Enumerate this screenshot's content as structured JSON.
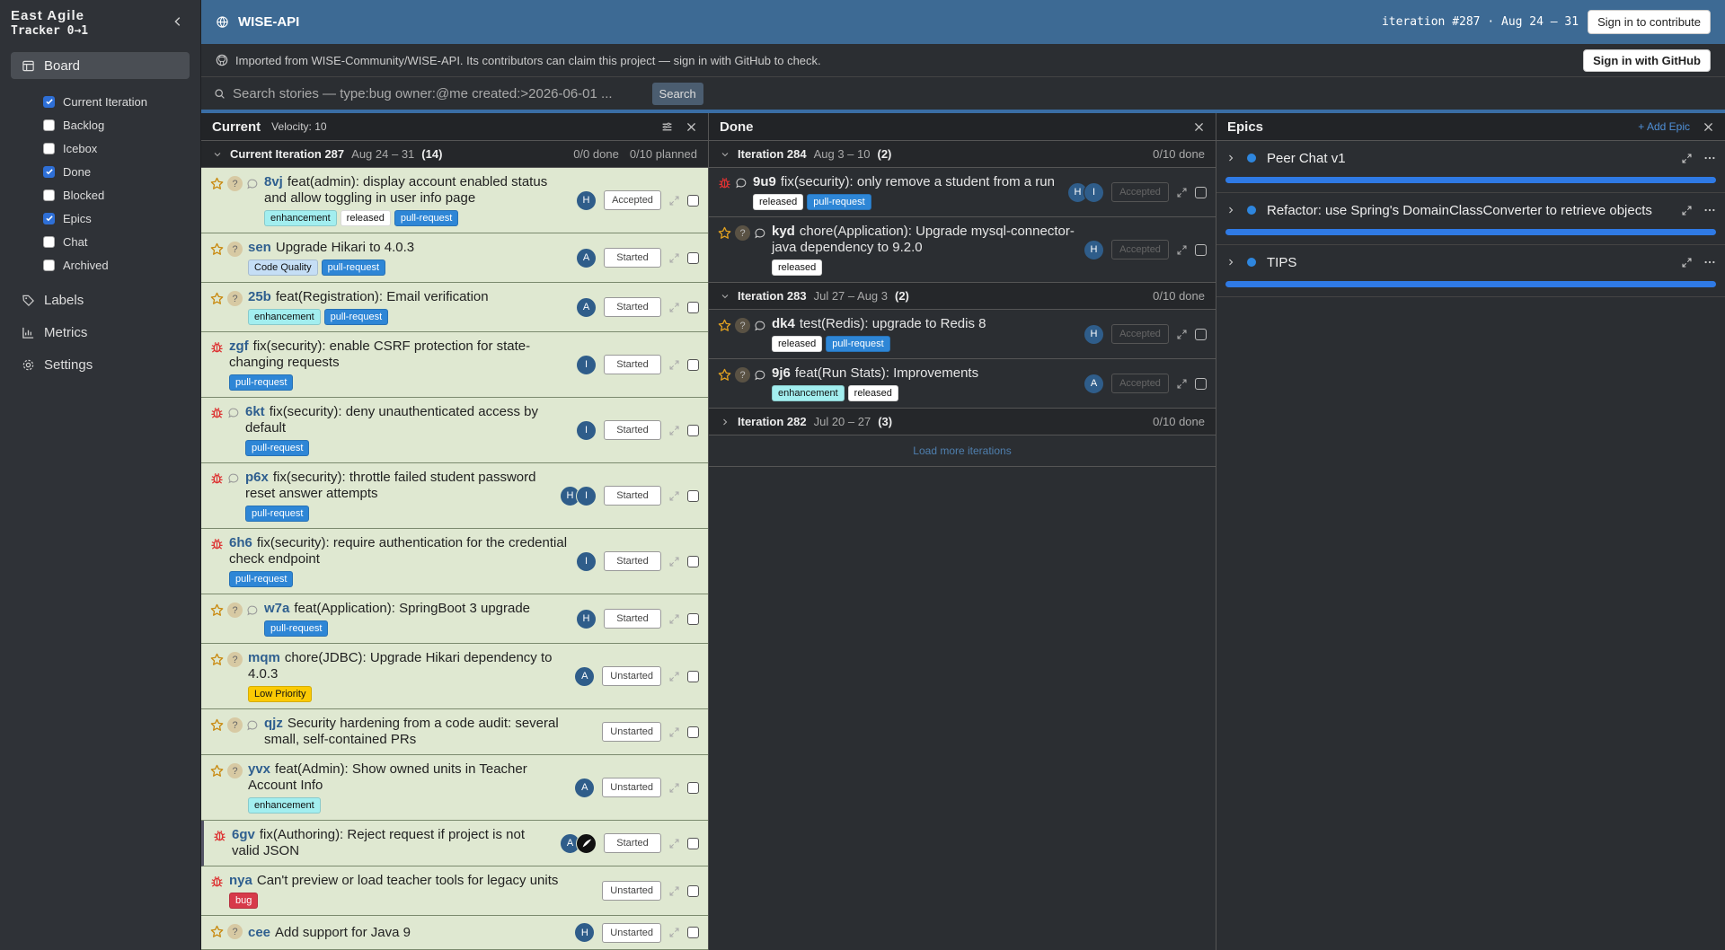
{
  "sidebar": {
    "brand": "East Agile",
    "product": "Tracker 0→1",
    "board": "Board",
    "board_items": [
      {
        "label": "Current Iteration",
        "checked": true
      },
      {
        "label": "Backlog",
        "checked": false
      },
      {
        "label": "Icebox",
        "checked": false
      },
      {
        "label": "Done",
        "checked": true
      },
      {
        "label": "Blocked",
        "checked": false
      },
      {
        "label": "Epics",
        "checked": true
      },
      {
        "label": "Chat",
        "checked": false
      },
      {
        "label": "Archived",
        "checked": false
      }
    ],
    "nav": [
      "Labels",
      "Metrics",
      "Settings"
    ]
  },
  "header": {
    "project": "WISE-API",
    "iteration": "iteration #287 · Aug 24 – 31",
    "sign_in": "Sign in to contribute"
  },
  "banner": {
    "text": "Imported from WISE-Community/WISE-API. Its contributors can claim this project — sign in with GitHub to check.",
    "button": "Sign in with GitHub"
  },
  "search": {
    "placeholder": "Search stories — type:bug owner:@me created:>2026-06-01 ...",
    "button": "Search"
  },
  "labels": [
    {
      "name": "enhancement",
      "bg": "#a2eeef",
      "fg": "#111"
    },
    {
      "name": "released",
      "bg": "#ffffff",
      "fg": "#111"
    },
    {
      "name": "pull-request",
      "bg": "#2e86d6",
      "fg": "#fff"
    },
    {
      "name": "Code Quality",
      "bg": "#c5def5",
      "fg": "#111"
    },
    {
      "name": "Low Priority",
      "bg": "#fbca04",
      "fg": "#111"
    },
    {
      "name": "bug",
      "bg": "#d73a4a",
      "fg": "#fff"
    }
  ],
  "current": {
    "title": "Current",
    "velocity": "Velocity: 10",
    "group": {
      "name": "Current Iteration 287",
      "dates": "Aug 24 – 31",
      "count": "(14)",
      "done": "0/0 done",
      "planned": "0/10 planned",
      "stories": [
        {
          "id": "8vj",
          "title": "feat(admin): display account enabled status and allow toggling in user info page",
          "kind": "feature",
          "estimate": "?",
          "comment": true,
          "owners": [
            "H"
          ],
          "state": "Accepted",
          "labels": [
            0,
            1,
            2
          ]
        },
        {
          "id": "sen",
          "title": "Upgrade Hikari to 4.0.3",
          "kind": "feature",
          "estimate": "?",
          "comment": false,
          "owners": [
            "A"
          ],
          "state": "Started",
          "labels": [
            3,
            2
          ]
        },
        {
          "id": "25b",
          "title": "feat(Registration): Email verification",
          "kind": "feature",
          "estimate": "?",
          "comment": false,
          "owners": [
            "A"
          ],
          "state": "Started",
          "labels": [
            0,
            2
          ]
        },
        {
          "id": "zgf",
          "title": "fix(security): enable CSRF protection for state-changing requests",
          "kind": "bug",
          "comment": false,
          "owners": [
            "I"
          ],
          "state": "Started",
          "labels": [
            2
          ]
        },
        {
          "id": "6kt",
          "title": "fix(security): deny unauthenticated access by default",
          "kind": "bug",
          "comment": true,
          "owners": [
            "I"
          ],
          "state": "Started",
          "labels": [
            2
          ]
        },
        {
          "id": "p6x",
          "title": "fix(security): throttle failed student password reset answer attempts",
          "kind": "bug",
          "comment": true,
          "owners": [
            "H",
            "I"
          ],
          "state": "Started",
          "labels": [
            2
          ]
        },
        {
          "id": "6h6",
          "title": "fix(security): require authentication for the credential check endpoint",
          "kind": "bug",
          "comment": false,
          "owners": [
            "I"
          ],
          "state": "Started",
          "labels": [
            2
          ]
        },
        {
          "id": "w7a",
          "title": "feat(Application): SpringBoot 3 upgrade",
          "kind": "feature",
          "estimate": "?",
          "comment": true,
          "owners": [
            "H"
          ],
          "state": "Started",
          "labels": [
            2
          ]
        },
        {
          "id": "mqm",
          "title": "chore(JDBC): Upgrade Hikari dependency to 4.0.3",
          "kind": "feature",
          "estimate": "?",
          "comment": false,
          "owners": [
            "A"
          ],
          "state": "Unstarted",
          "labels": [
            4
          ]
        },
        {
          "id": "qjz",
          "title": "Security hardening from a code audit: several small, self-contained PRs",
          "kind": "feature",
          "estimate": "?",
          "comment": true,
          "owners": [],
          "state": "Unstarted",
          "labels": []
        },
        {
          "id": "yvx",
          "title": "feat(Admin): Show owned units in Teacher Account Info",
          "kind": "feature",
          "estimate": "?",
          "comment": false,
          "owners": [
            "A"
          ],
          "state": "Unstarted",
          "labels": [
            0
          ]
        },
        {
          "id": "6gv",
          "title": "fix(Authoring): Reject request if project is not valid JSON",
          "kind": "bug",
          "comment": false,
          "owners": [
            "A"
          ],
          "owner_photo": true,
          "state": "Started",
          "labels": []
        },
        {
          "id": "nya",
          "title": "Can't preview or load teacher tools for legacy units",
          "kind": "bug",
          "comment": false,
          "owners": [],
          "state": "Unstarted",
          "labels": [
            5
          ]
        },
        {
          "id": "cee",
          "title": "Add support for Java 9",
          "kind": "feature",
          "estimate": "?",
          "comment": false,
          "owners": [
            "H"
          ],
          "state": "Unstarted",
          "labels": []
        }
      ]
    }
  },
  "done": {
    "title": "Done",
    "iterations": [
      {
        "name": "Iteration 284",
        "dates": "Aug 3 – 10",
        "count": "(2)",
        "done": "0/10 done",
        "expanded": true,
        "stories": [
          {
            "id": "9u9",
            "title": "fix(security): only remove a student from a run",
            "kind": "bug",
            "comment": true,
            "owners": [
              "H",
              "I"
            ],
            "state": "Accepted",
            "labels": [
              1,
              2
            ]
          },
          {
            "id": "kyd",
            "title": "chore(Application): Upgrade mysql-connector-java dependency to 9.2.0",
            "kind": "feature",
            "estimate": "?",
            "comment": true,
            "owners": [
              "H"
            ],
            "state": "Accepted",
            "labels": [
              1
            ]
          }
        ]
      },
      {
        "name": "Iteration 283",
        "dates": "Jul 27 – Aug 3",
        "count": "(2)",
        "done": "0/10 done",
        "expanded": true,
        "stories": [
          {
            "id": "dk4",
            "title": "test(Redis): upgrade to Redis 8",
            "kind": "feature",
            "estimate": "?",
            "comment": true,
            "owners": [
              "H"
            ],
            "state": "Accepted",
            "labels": [
              1,
              2
            ]
          },
          {
            "id": "9j6",
            "title": "feat(Run Stats): Improvements",
            "kind": "feature",
            "estimate": "?",
            "comment": true,
            "owners": [
              "A"
            ],
            "state": "Accepted",
            "labels": [
              0,
              1
            ]
          }
        ]
      },
      {
        "name": "Iteration 282",
        "dates": "Jul 20 – 27",
        "count": "(3)",
        "done": "0/10 done",
        "expanded": false,
        "stories": []
      }
    ],
    "load_more": "Load more iterations"
  },
  "epics": {
    "title": "Epics",
    "add": "+ Add Epic",
    "items": [
      {
        "name": "Peer Chat v1"
      },
      {
        "name": "Refactor: use Spring's DomainClassConverter to retrieve objects"
      },
      {
        "name": "TIPS"
      }
    ]
  }
}
